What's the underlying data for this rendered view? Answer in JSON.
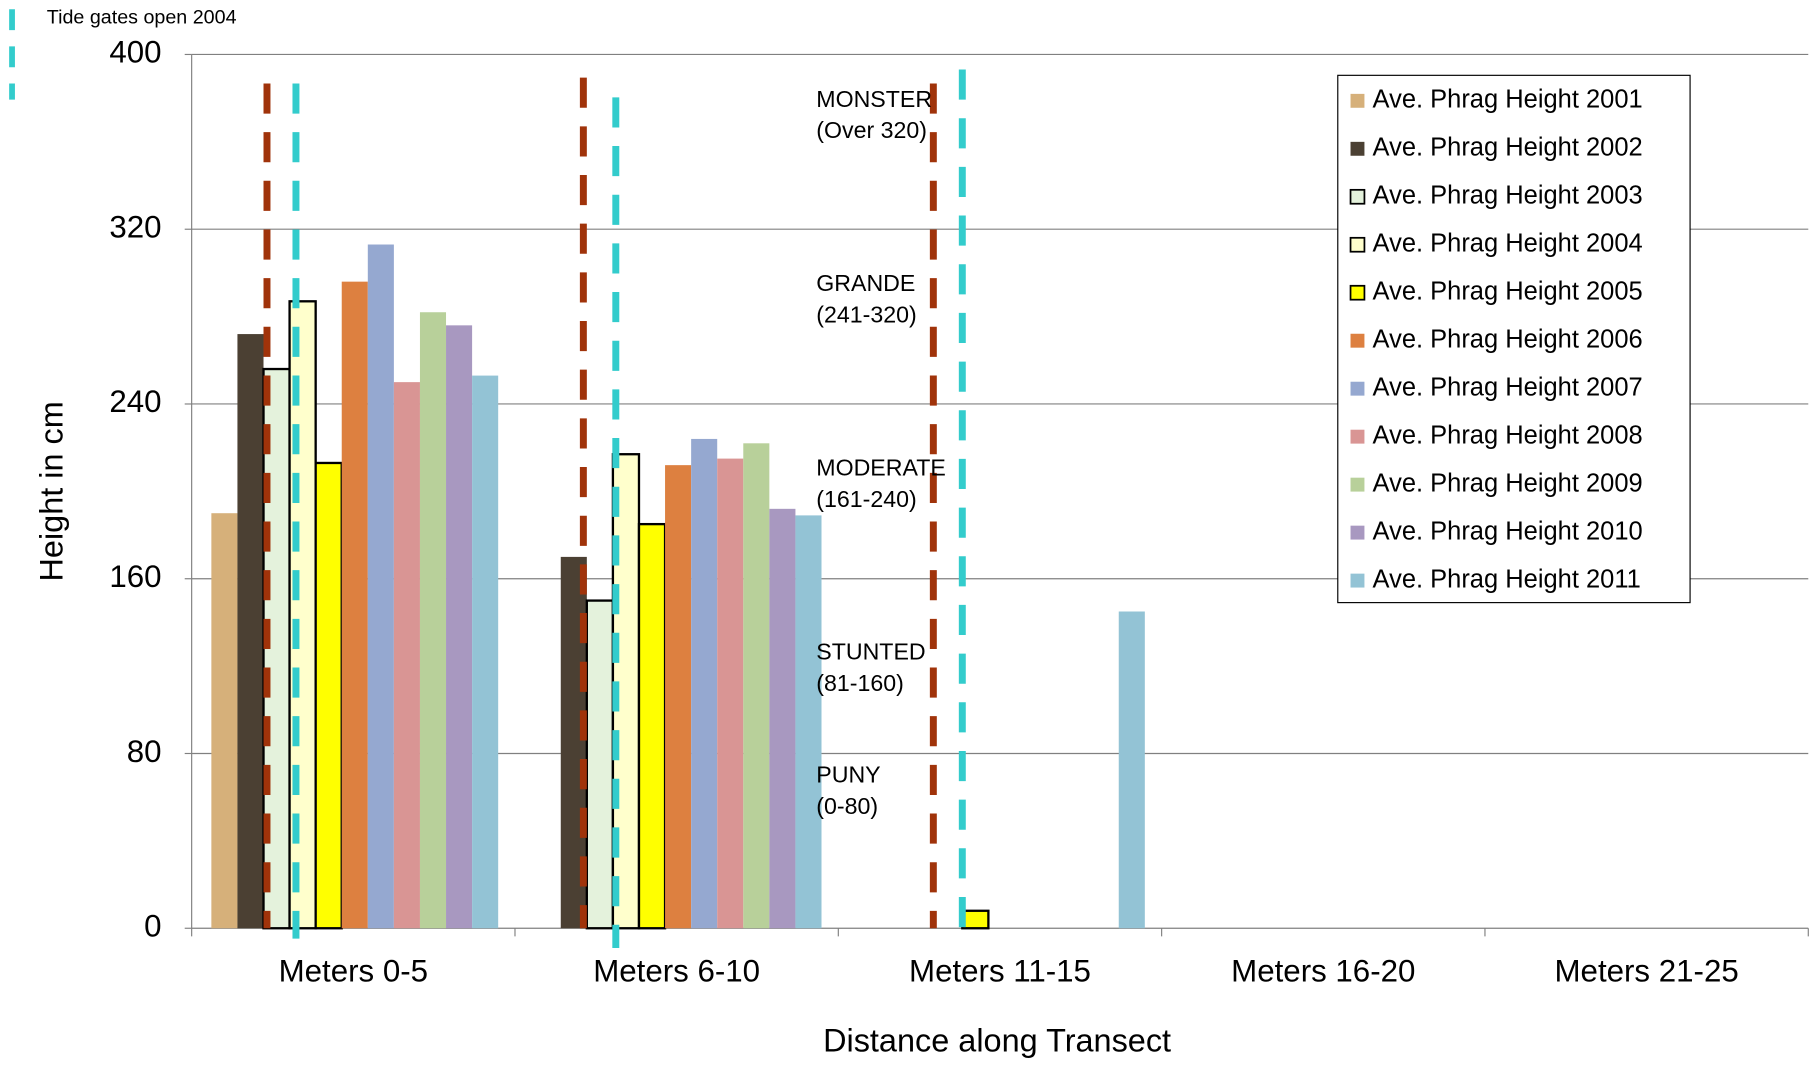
{
  "chart_data": {
    "type": "bar",
    "y_label": "Height in cm",
    "x_label": "Distance along Transect",
    "categories": [
      "Meters  0-5",
      "Meters  6-10",
      "Meters  11-15",
      "Meters  16-20",
      "Meters  21-25"
    ],
    "series": [
      {
        "name": "Ave. Phrag Height 2001",
        "color": "#d6b07a",
        "values": [
          190,
          null,
          null,
          null,
          null
        ]
      },
      {
        "name": "Ave. Phrag Height 2002",
        "color": "#4b4033",
        "values": [
          272,
          170,
          null,
          null,
          null
        ]
      },
      {
        "name": "Ave. Phrag Height 2003",
        "color": "#e4f2dc",
        "values": [
          256,
          150,
          null,
          null,
          null
        ]
      },
      {
        "name": "Ave. Phrag Height 2004",
        "color": "#ffffcc",
        "values": [
          287,
          217,
          null,
          null,
          null
        ]
      },
      {
        "name": "Ave. Phrag Height 2005",
        "color": "#ffff00",
        "values": [
          213,
          185,
          8,
          null,
          null
        ]
      },
      {
        "name": "Ave. Phrag Height 2006",
        "color": "#dd8040",
        "values": [
          296,
          212,
          null,
          null,
          null
        ]
      },
      {
        "name": "Ave. Phrag Height 2007",
        "color": "#95a8d0",
        "values": [
          313,
          224,
          null,
          null,
          null
        ]
      },
      {
        "name": "Ave. Phrag Height 2008",
        "color": "#d99594",
        "values": [
          250,
          215,
          null,
          null,
          null
        ]
      },
      {
        "name": "Ave. Phrag Height 2009",
        "color": "#b8d09a",
        "values": [
          282,
          222,
          null,
          null,
          null
        ]
      },
      {
        "name": "Ave. Phrag Height 2010",
        "color": "#a898c0",
        "values": [
          276,
          192,
          null,
          null,
          null
        ]
      },
      {
        "name": "Ave. Phrag Height 2011",
        "color": "#93c3d5",
        "values": [
          253,
          189,
          145,
          null,
          null
        ]
      }
    ],
    "ylim": [
      0,
      400
    ],
    "yticks": [
      0,
      80,
      160,
      240,
      320,
      400
    ],
    "grid": true,
    "legend": "upper right",
    "annotations": [
      [
        "MONSTER",
        "(Over 320)"
      ],
      [
        "GRANDE",
        "(241-320)"
      ],
      [
        "MODERATE",
        "(161-240)"
      ],
      [
        "STUNTED",
        "(81-160)"
      ],
      [
        "PUNY",
        "(0-80)"
      ]
    ],
    "marker_note": "Tide gates open 2004"
  }
}
